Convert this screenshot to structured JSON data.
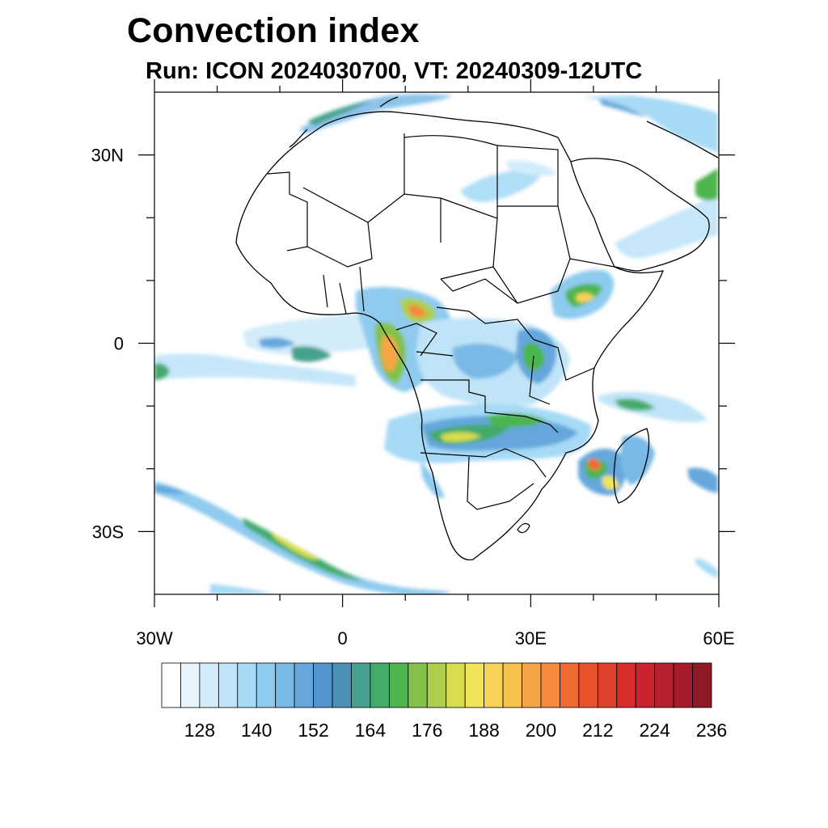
{
  "header": {
    "title": "Convection index",
    "subtitle": "Run: ICON 2024030700,  VT: 20240309-12UTC"
  },
  "map": {
    "region": "Africa",
    "lon_range": [
      -30,
      60
    ],
    "lat_range": [
      -40,
      40
    ],
    "ticks": {
      "x": [
        {
          "lon": -30,
          "label": "30W"
        },
        {
          "lon": 0,
          "label": "0"
        },
        {
          "lon": 30,
          "label": "30E"
        },
        {
          "lon": 60,
          "label": "60E"
        }
      ],
      "y": [
        {
          "lat": 30,
          "label": "30N"
        },
        {
          "lat": 0,
          "label": "0"
        },
        {
          "lat": -30,
          "label": "30S"
        }
      ]
    },
    "minor_tick_step_deg": 10
  },
  "colorbar": {
    "levels": [
      120,
      124,
      128,
      132,
      136,
      140,
      144,
      148,
      152,
      156,
      160,
      164,
      168,
      172,
      176,
      180,
      184,
      188,
      192,
      196,
      200,
      204,
      208,
      212,
      216,
      220,
      224,
      228,
      232,
      236
    ],
    "labels": [
      "128",
      "140",
      "152",
      "164",
      "176",
      "188",
      "200",
      "212",
      "224",
      "236"
    ],
    "colors": [
      "#ffffff",
      "#e8f5fd",
      "#d2ecfa",
      "#bfe4f8",
      "#a6daf6",
      "#8ecbee",
      "#79b9e6",
      "#65a7dc",
      "#5294cd",
      "#4b91b5",
      "#47a18f",
      "#43ab6c",
      "#4eb54e",
      "#84c14a",
      "#aecf4c",
      "#d7dd4d",
      "#f1e557",
      "#f6d258",
      "#f8c149",
      "#f6a544",
      "#f48a3b",
      "#ee6a30",
      "#e8532d",
      "#e0402c",
      "#d82c2d",
      "#c8232f",
      "#b71f2e",
      "#a61c2b",
      "#8f1a27"
    ]
  }
}
